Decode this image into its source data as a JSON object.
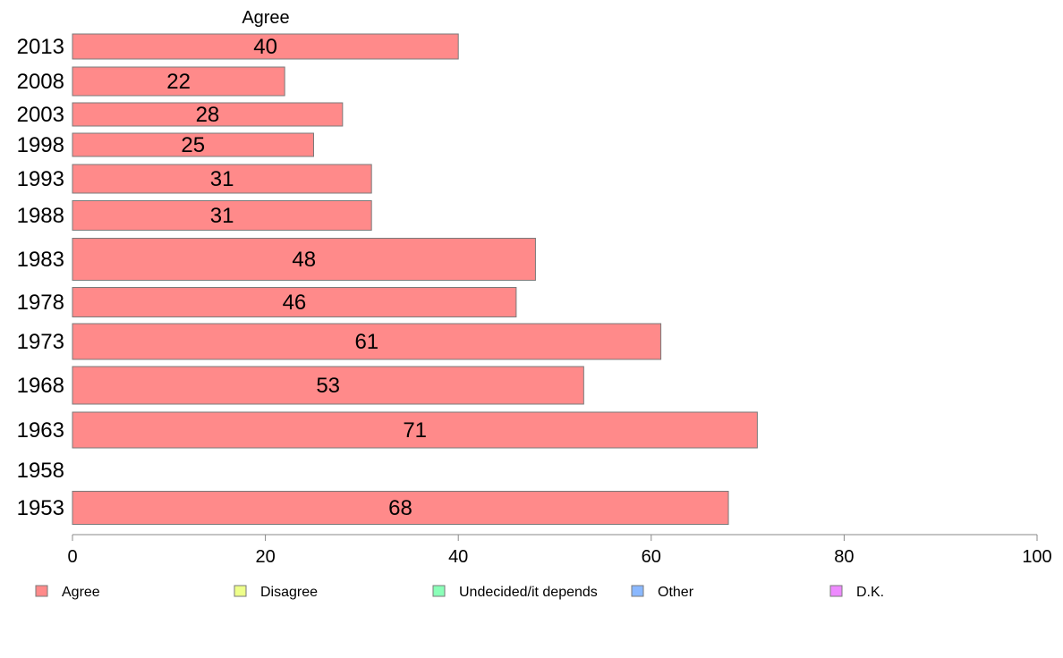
{
  "chart_data": {
    "type": "bar",
    "orientation": "horizontal",
    "column_header": "Agree",
    "categories": [
      "2013",
      "2008",
      "2003",
      "1998",
      "1993",
      "1988",
      "1983",
      "1978",
      "1973",
      "1968",
      "1963",
      "1958",
      "1953"
    ],
    "series": [
      {
        "name": "Agree",
        "color": "#ff8a8a",
        "values": [
          40,
          22,
          28,
          25,
          31,
          31,
          48,
          46,
          61,
          53,
          71,
          null,
          68
        ]
      }
    ],
    "xlim": [
      0,
      100
    ],
    "xticks": [
      0,
      20,
      40,
      60,
      80,
      100
    ],
    "legend": [
      {
        "label": "Agree",
        "color": "#ff8a8a"
      },
      {
        "label": "Disagree",
        "color": "#eeff8a"
      },
      {
        "label": "Undecided/it depends",
        "color": "#8affb8"
      },
      {
        "label": "Other",
        "color": "#8ab8ff"
      },
      {
        "label": "D.K.",
        "color": "#ee8aff"
      }
    ],
    "legend_position": "bottom",
    "grid": false
  }
}
